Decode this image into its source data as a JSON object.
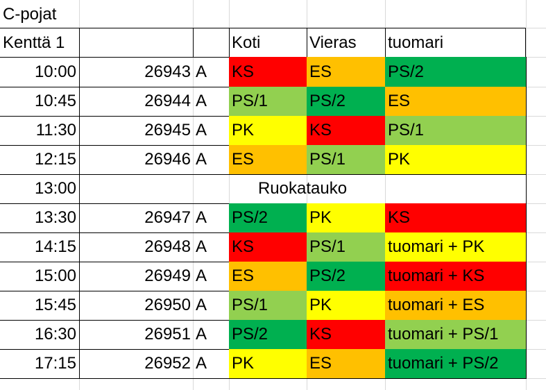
{
  "sheet_title": "C-pojat",
  "header": {
    "field": "Kenttä 1",
    "home": "Koti",
    "away": "Vieras",
    "referee": "tuomari"
  },
  "colors": {
    "KS": "#ff0000",
    "ES": "#ffc000",
    "PS/1": "#92d050",
    "PS/2": "#00b050",
    "PK": "#ffff00"
  },
  "break_row": {
    "time": "13:00",
    "label": "Ruokatauko"
  },
  "rows": [
    {
      "time": "10:00",
      "game": "26943",
      "group": "A",
      "home": "KS",
      "home_team": "KS",
      "away": "ES",
      "away_team": "ES",
      "ref": "PS/2",
      "ref_team": "PS/2"
    },
    {
      "time": "10:45",
      "game": "26944",
      "group": "A",
      "home": "PS/1",
      "home_team": "PS/1",
      "away": "PS/2",
      "away_team": "PS/2",
      "ref": "ES",
      "ref_team": "ES"
    },
    {
      "time": "11:30",
      "game": "26945",
      "group": "A",
      "home": "PK",
      "home_team": "PK",
      "away": "KS",
      "away_team": "KS",
      "ref": "PS/1",
      "ref_team": "PS/1"
    },
    {
      "time": "12:15",
      "game": "26946",
      "group": "A",
      "home": "ES",
      "home_team": "ES",
      "away": "PS/1",
      "away_team": "PS/1",
      "ref": "PK",
      "ref_team": "PK"
    },
    {
      "time": "13:30",
      "game": "26947",
      "group": "A",
      "home": "PS/2",
      "home_team": "PS/2",
      "away": "PK",
      "away_team": "PK",
      "ref": "KS",
      "ref_team": "KS"
    },
    {
      "time": "14:15",
      "game": "26948",
      "group": "A",
      "home": "KS",
      "home_team": "KS",
      "away": "PS/1",
      "away_team": "PS/1",
      "ref": "tuomari + PK",
      "ref_team": "PK"
    },
    {
      "time": "15:00",
      "game": "26949",
      "group": "A",
      "home": "ES",
      "home_team": "ES",
      "away": "PS/2",
      "away_team": "PS/2",
      "ref": "tuomari + KS",
      "ref_team": "KS"
    },
    {
      "time": "15:45",
      "game": "26950",
      "group": "A",
      "home": "PS/1",
      "home_team": "PS/1",
      "away": "PK",
      "away_team": "PK",
      "ref": "tuomari + ES",
      "ref_team": "ES"
    },
    {
      "time": "16:30",
      "game": "26951",
      "group": "A",
      "home": "PS/2",
      "home_team": "PS/2",
      "away": "KS",
      "away_team": "KS",
      "ref": "tuomari + PS/1",
      "ref_team": "PS/1"
    },
    {
      "time": "17:15",
      "game": "26952",
      "group": "A",
      "home": "PK",
      "home_team": "PK",
      "away": "ES",
      "away_team": "ES",
      "ref": "tuomari + PS/2",
      "ref_team": "PS/2"
    }
  ]
}
